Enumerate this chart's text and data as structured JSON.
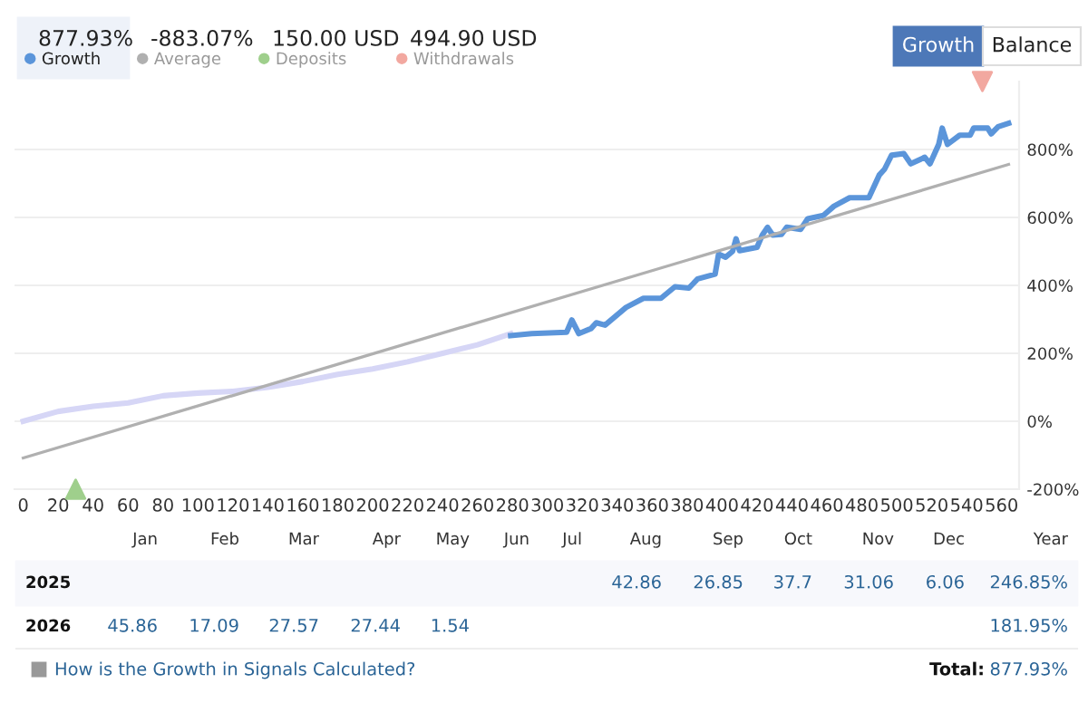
{
  "chart_data": [
    {
      "type": "line",
      "xlim": [
        -5,
        570
      ],
      "xticks": [
        0,
        20,
        40,
        60,
        80,
        100,
        120,
        140,
        160,
        180,
        200,
        220,
        240,
        260,
        280,
        300,
        320,
        340,
        360,
        380,
        400,
        420,
        440,
        460,
        480,
        500,
        520,
        540,
        560
      ],
      "ylim": [
        -200,
        1000
      ],
      "yticks": [
        {
          "value": -200,
          "label": "-200%"
        },
        {
          "value": 0,
          "label": "0%"
        },
        {
          "value": 200,
          "label": "200%"
        },
        {
          "value": 400,
          "label": "400%"
        },
        {
          "value": 600,
          "label": "600%"
        },
        {
          "value": 800,
          "label": "800%"
        }
      ],
      "grid": "y",
      "legend": "top left",
      "annotations": [
        "877.93%",
        "-883.07%",
        "150.00 USD",
        "494.90 USD",
        "Growth",
        "Balance"
      ],
      "series": [
        {
          "color": "#d6d6f6",
          "x": [
            0,
            20,
            40,
            60,
            80,
            100,
            120,
            140,
            160,
            180,
            200,
            220,
            240,
            260,
            279
          ],
          "values": [
            0,
            29,
            44,
            54,
            75,
            83,
            88,
            100,
            117,
            138,
            154,
            175,
            200,
            225,
            258
          ]
        },
        {
          "name": "Growth",
          "color": "#5b95da",
          "x": [
            279,
            291,
            311,
            314,
            318,
            325,
            328,
            333,
            345,
            355,
            365,
            373,
            381,
            386,
            396,
            398,
            402,
            406,
            408,
            410,
            420,
            423,
            426,
            429,
            434,
            437,
            445,
            449,
            458,
            464,
            473,
            484,
            490,
            493,
            497,
            504,
            508,
            516,
            519,
            524,
            526,
            529,
            536,
            542,
            544,
            552,
            554,
            558,
            564
          ],
          "values": [
            252,
            258,
            262,
            298,
            258,
            273,
            290,
            283,
            335,
            362,
            362,
            396,
            392,
            419,
            433,
            492,
            483,
            500,
            537,
            502,
            512,
            548,
            571,
            548,
            550,
            571,
            565,
            596,
            606,
            633,
            658,
            658,
            725,
            742,
            783,
            788,
            758,
            777,
            758,
            815,
            863,
            815,
            842,
            842,
            863,
            863,
            846,
            867,
            877
          ]
        },
        {
          "name": "Average",
          "color": "#b0b0b0",
          "x": [
            0,
            564
          ],
          "values": [
            -108,
            756
          ]
        },
        {
          "name": "Deposits",
          "type": "scatter",
          "marker": "triangle",
          "color": "#9fcf8c",
          "x": [
            30
          ],
          "values": [
            -200
          ]
        },
        {
          "name": "Withdrawals",
          "type": "scatter",
          "marker": "triangle",
          "color": "#f2a8a0",
          "x": [
            549
          ],
          "values": [
            1000
          ]
        }
      ]
    },
    {
      "type": "other",
      "categories": [
        "Jan",
        "Feb",
        "Mar",
        "Apr",
        "May",
        "Jun",
        "Jul",
        "Aug",
        "Sep",
        "Oct",
        "Nov",
        "Dec",
        "Year"
      ],
      "y_categories": [
        "2025",
        "2026"
      ],
      "cell_labels": [
        [
          null,
          null,
          null,
          null,
          null,
          null,
          null,
          "42.86",
          "26.85",
          "37.7",
          "31.06",
          "6.06",
          "246.85%"
        ],
        [
          "45.86",
          "17.09",
          "27.57",
          "27.44",
          "1.54",
          null,
          null,
          null,
          null,
          null,
          null,
          null,
          "181.95%"
        ]
      ],
      "annotations": [
        "How is the Growth in Signals Calculated?",
        "Total:",
        "877.93%"
      ]
    }
  ]
}
